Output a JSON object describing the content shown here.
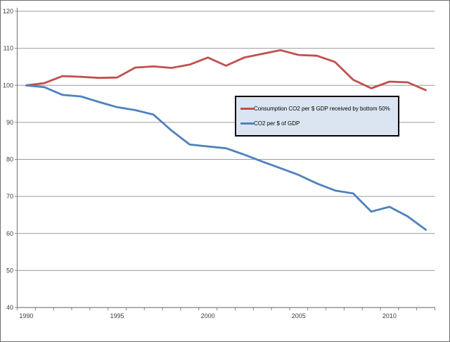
{
  "chart_data": {
    "type": "line",
    "title": "",
    "xlabel": "",
    "ylabel": "",
    "x": [
      1990,
      1991,
      1992,
      1993,
      1994,
      1995,
      1996,
      1997,
      1998,
      1999,
      2000,
      2001,
      2002,
      2003,
      2004,
      2005,
      2006,
      2007,
      2008,
      2009,
      2010,
      2011,
      2012
    ],
    "series": [
      {
        "name": "Consumption CO2 per $ GDP received by bottom 50%",
        "color": "#C0504D",
        "values": [
          100,
          100.6,
          102.5,
          102.3,
          102.0,
          102.1,
          104.8,
          105.1,
          104.7,
          105.6,
          107.5,
          105.3,
          107.5,
          108.5,
          109.5,
          108.2,
          108.0,
          106.3,
          101.5,
          99.2,
          101.0,
          100.8,
          98.7
        ]
      },
      {
        "name": "CO2 per $ of GDP",
        "color": "#4F81BD",
        "values": [
          100,
          99.5,
          97.4,
          97.0,
          95.5,
          94.1,
          93.3,
          92.1,
          87.8,
          84.0,
          83.5,
          83.0,
          81.3,
          79.4,
          77.6,
          75.8,
          73.5,
          71.6,
          70.8,
          65.9,
          67.2,
          64.6,
          61.0
        ]
      }
    ],
    "ylim": [
      40,
      120
    ],
    "yticks": [
      40,
      50,
      60,
      70,
      80,
      90,
      100,
      110,
      120
    ],
    "xticks_labeled": [
      1990,
      1995,
      2000,
      2005,
      2010
    ],
    "grid": "horizontal",
    "legend_position": "center-right-boxed"
  },
  "colors": {
    "axis_line": "#808080",
    "gridline": "#9b9b9b",
    "tick_label": "#3f3f3f",
    "legend_background": "#DBE5F1",
    "legend_border": "#000000",
    "chart_background": "#FFFFFF"
  }
}
